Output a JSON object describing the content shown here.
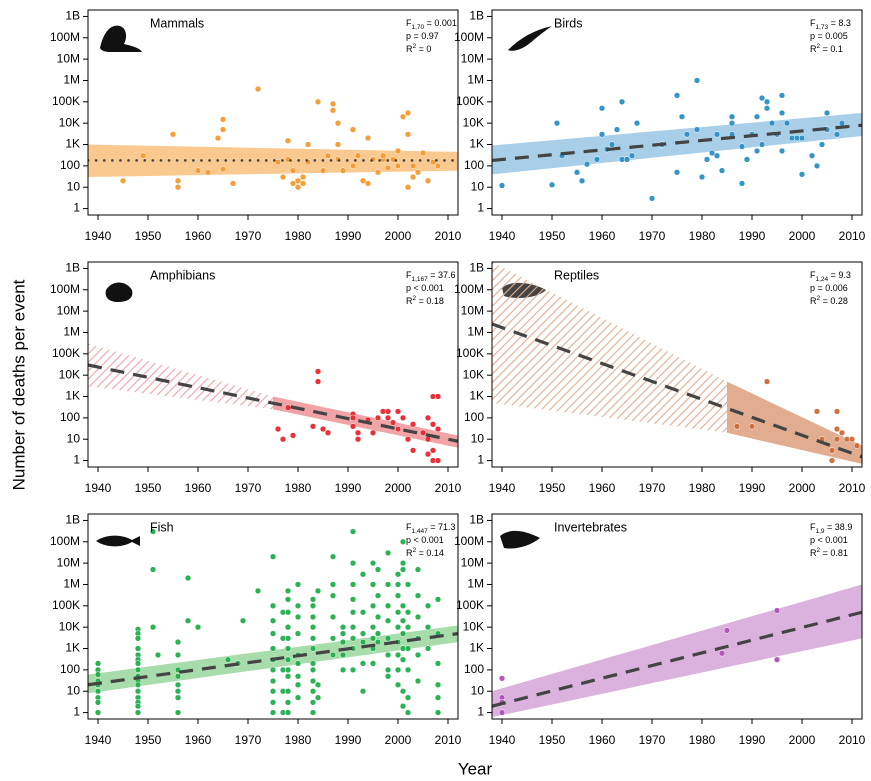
{
  "y_label": "Number of deaths per event",
  "x_label": "Year",
  "chart_data": [
    {
      "type": "scatter",
      "title": "Mammals",
      "color": "#f39a2e",
      "band_color": "#f9c990",
      "fit_style": "dotted",
      "log_y": true,
      "stats": [
        {
          "text": "F",
          "sub": "1,70",
          "rest": " = 0.001"
        },
        {
          "text": "p = 0.97"
        },
        {
          "text": "R",
          "sup": "2",
          "rest": " = 0"
        }
      ],
      "xlim": [
        1938,
        2012
      ],
      "xticks": [
        1940,
        1950,
        1960,
        1970,
        1980,
        1990,
        2000,
        2010
      ],
      "ylim": [
        0.5,
        2000000000
      ],
      "yticks": [
        1,
        10,
        100,
        {
          "value": 1000,
          "label": "1K"
        },
        {
          "value": 10000,
          "label": "10K"
        },
        {
          "value": 100000,
          "label": "100K"
        },
        {
          "value": 1000000,
          "label": "1M"
        },
        {
          "value": 10000000,
          "label": "10M"
        },
        {
          "value": 100000000,
          "label": "100M"
        },
        {
          "value": 1000000000,
          "label": "1B"
        }
      ],
      "x": [
        1945,
        1949,
        1955,
        1956,
        1956,
        1960,
        1962,
        1964,
        1965,
        1965,
        1965,
        1967,
        1972,
        1976,
        1977,
        1978,
        1978,
        1979,
        1979,
        1980,
        1980,
        1981,
        1981,
        1982,
        1982,
        1984,
        1985,
        1986,
        1987,
        1987,
        1988,
        1988,
        1988,
        1989,
        1991,
        1991,
        1992,
        1993,
        1994,
        1994,
        1995,
        1996,
        1997,
        1997,
        1998,
        1999,
        2000,
        2000,
        2001,
        2002,
        2002,
        2002,
        2003,
        2003,
        2004,
        2005,
        2006,
        2007,
        2008
      ],
      "values": [
        20,
        300,
        3000,
        20,
        10,
        60,
        50,
        2000,
        5000,
        15000,
        70,
        15,
        400000,
        150,
        30,
        1500,
        200,
        60,
        15,
        20,
        10,
        30,
        15,
        1000,
        150,
        100000,
        60,
        300,
        80000,
        40000,
        10000,
        1000,
        200,
        60,
        5000,
        100,
        300,
        20,
        2000,
        15,
        200,
        50,
        200,
        300,
        80,
        200,
        500,
        100,
        20000,
        30000,
        10,
        3000,
        100,
        30,
        50,
        400,
        20,
        150,
        100
      ],
      "fit": {
        "x": [
          1938,
          2012
        ],
        "y": [
          180,
          180
        ],
        "lower": [
          30,
          60
        ],
        "upper": [
          1000,
          450
        ]
      }
    },
    {
      "type": "scatter",
      "title": "Birds",
      "color": "#2a8fc4",
      "band_color": "#a9cfe8",
      "fit_style": "dashed",
      "log_y": true,
      "stats": [
        {
          "text": "F",
          "sub": "1,73",
          "rest": " = 8.3"
        },
        {
          "text": "p = 0.005"
        },
        {
          "text": "R",
          "sup": "2",
          "rest": " = 0.1"
        }
      ],
      "xlim": [
        1938,
        2012
      ],
      "xticks": [
        1940,
        1950,
        1960,
        1970,
        1980,
        1990,
        2000,
        2010
      ],
      "ylim": [
        0.5,
        2000000000
      ],
      "yticks": [
        1,
        10,
        100,
        {
          "value": 1000,
          "label": "1K"
        },
        {
          "value": 10000,
          "label": "10K"
        },
        {
          "value": 100000,
          "label": "100K"
        },
        {
          "value": 1000000,
          "label": "1M"
        },
        {
          "value": 10000000,
          "label": "10M"
        },
        {
          "value": 100000000,
          "label": "100M"
        },
        {
          "value": 1000000000,
          "label": "1B"
        }
      ],
      "x": [
        1940,
        1950,
        1951,
        1952,
        1955,
        1956,
        1957,
        1959,
        1960,
        1960,
        1961,
        1962,
        1963,
        1964,
        1964,
        1965,
        1966,
        1967,
        1970,
        1972,
        1975,
        1975,
        1976,
        1977,
        1979,
        1979,
        1980,
        1981,
        1982,
        1983,
        1983,
        1984,
        1986,
        1986,
        1986,
        1988,
        1988,
        1989,
        1990,
        1991,
        1991,
        1992,
        1992,
        1993,
        1993,
        1994,
        1995,
        1996,
        1996,
        1996,
        1997,
        1998,
        1999,
        2000,
        2000,
        2002,
        2003,
        2004,
        2005,
        2005,
        2007,
        2008
      ],
      "values": [
        12,
        13,
        10000,
        300,
        50,
        20,
        120,
        200,
        3000,
        50000,
        600,
        1000,
        5000,
        200,
        100000,
        200,
        300,
        10000,
        3,
        1000,
        50,
        200000,
        20000,
        3000,
        5000,
        1000000,
        30,
        200,
        400,
        3000,
        300,
        60,
        20000,
        10000,
        3000,
        800,
        15,
        200,
        3000,
        500,
        20000,
        150000,
        1000,
        100000,
        50000,
        10000,
        3000,
        200000,
        30000,
        500,
        10000,
        2000,
        2000,
        40,
        2000,
        300,
        100,
        1000,
        30000,
        5000,
        3000,
        10000
      ],
      "fit": {
        "x": [
          1938,
          2012
        ],
        "y": [
          180,
          8000
        ],
        "lower": [
          40,
          2500
        ],
        "upper": [
          900,
          30000
        ]
      }
    },
    {
      "type": "scatter",
      "title": "Amphibians",
      "color": "#e8262e",
      "band_color": "#f2a3a5",
      "fit_style": "dashed",
      "log_y": true,
      "observed_from": 1975,
      "stats": [
        {
          "text": "F",
          "sub": "1,167",
          "rest": " = 37.6"
        },
        {
          "text": "p < 0.001"
        },
        {
          "text": "R",
          "sup": "2",
          "rest": " = 0.18"
        }
      ],
      "xlim": [
        1938,
        2012
      ],
      "xticks": [
        1940,
        1950,
        1960,
        1970,
        1980,
        1990,
        2000,
        2010
      ],
      "ylim": [
        0.5,
        2000000000
      ],
      "yticks": [
        1,
        10,
        100,
        {
          "value": 1000,
          "label": "1K"
        },
        {
          "value": 10000,
          "label": "10K"
        },
        {
          "value": 100000,
          "label": "100K"
        },
        {
          "value": 1000000,
          "label": "1M"
        },
        {
          "value": 10000000,
          "label": "10M"
        },
        {
          "value": 100000000,
          "label": "100M"
        },
        {
          "value": 1000000000,
          "label": "1B"
        }
      ],
      "x": [
        1976,
        1977,
        1978,
        1979,
        1983,
        1984,
        1984,
        1985,
        1986,
        1991,
        1991,
        1991,
        1992,
        1992,
        1994,
        1995,
        1996,
        1997,
        1998,
        1998,
        1999,
        2000,
        2000,
        2001,
        2002,
        2003,
        2003,
        2005,
        2006,
        2006,
        2006,
        2007,
        2007,
        2007,
        2007,
        2008,
        2008,
        2008
      ],
      "values": [
        30,
        10,
        300,
        15,
        40,
        15000,
        5000,
        30,
        20,
        150,
        100,
        40,
        10,
        20,
        80,
        20,
        100,
        200,
        200,
        100,
        60,
        200,
        30,
        100,
        10,
        3,
        50,
        20,
        100,
        10,
        2,
        3,
        1,
        1000,
        50,
        1000,
        30,
        1
      ],
      "fit": {
        "x": [
          1938,
          1975,
          2012
        ],
        "y": [
          30000,
          490,
          8
        ],
        "lower": [
          3000,
          250,
          4
        ],
        "upper": [
          300000,
          1000,
          15
        ]
      }
    },
    {
      "type": "scatter",
      "title": "Reptiles",
      "color": "#d06a3a",
      "band_color": "#e2ac8e",
      "fit_style": "dashed",
      "log_y": true,
      "observed_from": 1985,
      "stats": [
        {
          "text": "F",
          "sub": "1,24",
          "rest": " = 9.3"
        },
        {
          "text": "p = 0.006"
        },
        {
          "text": "R",
          "sup": "2",
          "rest": " = 0.28"
        }
      ],
      "xlim": [
        1938,
        2012
      ],
      "xticks": [
        1940,
        1950,
        1960,
        1970,
        1980,
        1990,
        2000,
        2010
      ],
      "ylim": [
        0.5,
        2000000000
      ],
      "yticks": [
        1,
        10,
        100,
        {
          "value": 1000,
          "label": "1K"
        },
        {
          "value": 10000,
          "label": "10K"
        },
        {
          "value": 100000,
          "label": "100K"
        },
        {
          "value": 1000000,
          "label": "1M"
        },
        {
          "value": 10000000,
          "label": "10M"
        },
        {
          "value": 100000000,
          "label": "100M"
        },
        {
          "value": 1000000000,
          "label": "1B"
        }
      ],
      "x": [
        1987,
        1990,
        1993,
        2003,
        2004,
        2006,
        2006,
        2007,
        2007,
        2007,
        2008,
        2009,
        2010,
        2011
      ],
      "values": [
        40,
        40,
        5000,
        200,
        10,
        3,
        1,
        200,
        30,
        10,
        20,
        10,
        10,
        5
      ],
      "fit": {
        "x": [
          1938,
          1985,
          2012
        ],
        "y": [
          2500000,
          280,
          1.5
        ],
        "lower": [
          500,
          20,
          0.7
        ],
        "upper": [
          2000000000,
          5000,
          5
        ]
      }
    },
    {
      "type": "scatter",
      "title": "Fish",
      "color": "#1fae4c",
      "band_color": "#a8dcaa",
      "fit_style": "dashed",
      "log_y": true,
      "stats": [
        {
          "text": "F",
          "sub": "1,447",
          "rest": " = 71.3"
        },
        {
          "text": "p < 0.001"
        },
        {
          "text": "R",
          "sup": "2",
          "rest": " = 0.14"
        }
      ],
      "xlim": [
        1938,
        2012
      ],
      "xticks": [
        1940,
        1950,
        1960,
        1970,
        1980,
        1990,
        2000,
        2010
      ],
      "ylim": [
        0.5,
        2000000000
      ],
      "yticks": [
        1,
        10,
        100,
        {
          "value": 1000,
          "label": "1K"
        },
        {
          "value": 10000,
          "label": "10K"
        },
        {
          "value": 100000,
          "label": "100K"
        },
        {
          "value": 1000000,
          "label": "1M"
        },
        {
          "value": 10000000,
          "label": "10M"
        },
        {
          "value": 100000000,
          "label": "100M"
        },
        {
          "value": 1000000000,
          "label": "1B"
        }
      ],
      "x": [
        1940,
        1940,
        1940,
        1940,
        1940,
        1940,
        1940,
        1940,
        1940,
        1948,
        1948,
        1948,
        1948,
        1948,
        1948,
        1948,
        1948,
        1948,
        1948,
        1948,
        1948,
        1948,
        1948,
        1948,
        1948,
        1951,
        1951,
        1951,
        1952,
        1956,
        1956,
        1956,
        1956,
        1956,
        1956,
        1956,
        1956,
        1958,
        1958,
        1960,
        1966,
        1968,
        1969,
        1972,
        1975,
        1975,
        1975,
        1975,
        1975,
        1975,
        1975,
        1975,
        1975,
        1975,
        1975,
        1977,
        1977,
        1977,
        1977,
        1977,
        1978,
        1978,
        1978,
        1978,
        1978,
        1978,
        1978,
        1978,
        1978,
        1978,
        1978,
        1978,
        1980,
        1980,
        1980,
        1980,
        1980,
        1980,
        1980,
        1980,
        1980,
        1983,
        1983,
        1983,
        1983,
        1983,
        1983,
        1983,
        1983,
        1983,
        1983,
        1983,
        1983,
        1984,
        1984,
        1984,
        1987,
        1987,
        1987,
        1987,
        1987,
        1987,
        1989,
        1989,
        1989,
        1989,
        1989,
        1991,
        1991,
        1991,
        1991,
        1991,
        1991,
        1991,
        1991,
        1991,
        1993,
        1993,
        1993,
        1993,
        1993,
        1993,
        1995,
        1995,
        1995,
        1995,
        1995,
        1995,
        1995,
        1996,
        1996,
        1996,
        1996,
        1996,
        1998,
        1998,
        1998,
        1998,
        1998,
        1998,
        1998,
        1998,
        2000,
        2000,
        2000,
        2000,
        2000,
        2000,
        2000,
        2000,
        2000,
        2001,
        2001,
        2001,
        2001,
        2001,
        2001,
        2001,
        2001,
        2001,
        2001,
        2002,
        2002,
        2002,
        2002,
        2002,
        2002,
        2002,
        2004,
        2004,
        2004,
        2004,
        2004,
        2004,
        2006,
        2006,
        2006,
        2008,
        2008,
        2008,
        2008,
        2008,
        2008
      ],
      "values": [
        200,
        100,
        60,
        30,
        20,
        10,
        5,
        3,
        1,
        8000,
        5000,
        3000,
        1000,
        500,
        300,
        200,
        100,
        50,
        30,
        20,
        10,
        5,
        3,
        2,
        1,
        300000000,
        5000000,
        10000,
        500,
        2000,
        500,
        100,
        50,
        20,
        10,
        5,
        1,
        2000000,
        20000,
        10000,
        300,
        200,
        20000,
        500000,
        20000000,
        100000,
        20000,
        5000,
        1000,
        300,
        100,
        30,
        10,
        3,
        1,
        50000,
        3000,
        100,
        10,
        1,
        500000,
        200000,
        50000,
        10000,
        3000,
        1000,
        300,
        100,
        50,
        10,
        3,
        1,
        1000000,
        100000,
        30000,
        5000,
        500,
        200,
        50,
        20,
        5,
        200000,
        100000,
        30000,
        10000,
        3000,
        1000,
        200,
        100,
        30,
        10,
        3,
        1,
        500000,
        20,
        5,
        20000000,
        1000000,
        300000,
        30000,
        3000,
        500,
        10000,
        5000,
        2000,
        500,
        100,
        300000000,
        10000000,
        1000000,
        200000,
        50000,
        10000,
        3000,
        1000,
        100,
        3000000,
        50000,
        5000,
        2000,
        200,
        10,
        10000000,
        1000000,
        100000,
        10000,
        3000,
        1000,
        200,
        5000000,
        300000,
        30000,
        5000,
        2000,
        30000000,
        1000000,
        100000,
        20000,
        3000,
        500,
        100,
        50,
        3000000,
        1000000,
        300000,
        50000,
        10000,
        2000,
        500,
        100,
        20,
        100000000,
        10000000,
        5000000,
        100000,
        20000,
        5000,
        1000,
        300,
        10,
        2,
        1000000,
        50000,
        10000,
        1000,
        100,
        5,
        1,
        5000000,
        300000,
        30000,
        3000,
        500,
        30,
        100000,
        10000,
        1000,
        200000,
        5000,
        200,
        20,
        5,
        1
      ],
      "fit": {
        "x": [
          1938,
          2012
        ],
        "y": [
          20,
          5000
        ],
        "lower": [
          8,
          2000
        ],
        "upper": [
          60,
          12000
        ]
      }
    },
    {
      "type": "scatter",
      "title": "Invertebrates",
      "color": "#b04fb8",
      "band_color": "#dbb2dd",
      "fit_style": "dashed",
      "log_y": true,
      "stats": [
        {
          "text": "F",
          "sub": "1,9",
          "rest": " = 38.9"
        },
        {
          "text": "p < 0.001"
        },
        {
          "text": "R",
          "sup": "2",
          "rest": " = 0.81"
        }
      ],
      "xlim": [
        1938,
        2012
      ],
      "xticks": [
        1940,
        1950,
        1960,
        1970,
        1980,
        1990,
        2000,
        2010
      ],
      "ylim": [
        0.5,
        2000000000
      ],
      "yticks": [
        1,
        10,
        100,
        {
          "value": 1000,
          "label": "1K"
        },
        {
          "value": 10000,
          "label": "10K"
        },
        {
          "value": 100000,
          "label": "100K"
        },
        {
          "value": 1000000,
          "label": "1M"
        },
        {
          "value": 10000000,
          "label": "10M"
        },
        {
          "value": 100000000,
          "label": "100M"
        },
        {
          "value": 1000000000,
          "label": "1B"
        }
      ],
      "x": [
        1940,
        1940,
        1940,
        1940,
        1984,
        1985,
        1995,
        1995
      ],
      "values": [
        40,
        5,
        3,
        1,
        600,
        7000,
        300,
        60000
      ],
      "fit": {
        "x": [
          1938,
          2012
        ],
        "y": [
          2,
          50000
        ],
        "lower": [
          0.6,
          3000
        ],
        "upper": [
          10,
          1000000
        ]
      }
    }
  ]
}
